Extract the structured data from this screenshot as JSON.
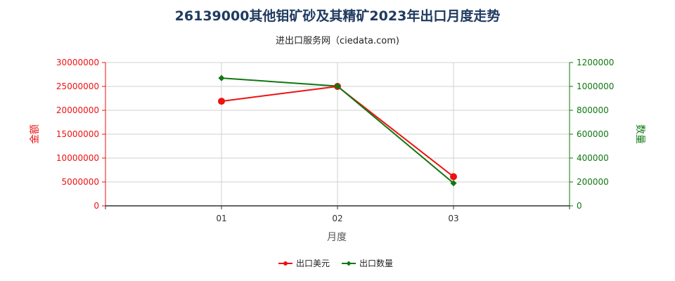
{
  "title": "26139000其他钼矿砂及其精矿2023年出口月度走势",
  "subtitle": "进出口服务网（ciedata.com)",
  "chart_data": {
    "type": "line",
    "categories": [
      "01",
      "02",
      "03"
    ],
    "series": [
      {
        "name": "出口美元",
        "axis": "left",
        "color": "#ee1111",
        "marker": "circle",
        "values": [
          21900000,
          25000000,
          6100000
        ]
      },
      {
        "name": "出口数量",
        "axis": "right",
        "color": "#117711",
        "marker": "diamond",
        "values": [
          1070000,
          1002000,
          190000
        ]
      }
    ],
    "xlabel": "月度",
    "ylabel_left": "金额",
    "ylabel_right": "数量",
    "ylim_left": [
      0,
      30000000
    ],
    "ylim_right": [
      0,
      1200000
    ],
    "yticks_left": [
      "0",
      "5000000",
      "10000000",
      "15000000",
      "20000000",
      "25000000",
      "30000000"
    ],
    "yticks_right": [
      "0",
      "200000",
      "400000",
      "600000",
      "800000",
      "1000000",
      "1200000"
    ],
    "left_axis_color": "#ee1111",
    "right_axis_color": "#117711",
    "grid": true,
    "legend_position": "bottom-center"
  }
}
